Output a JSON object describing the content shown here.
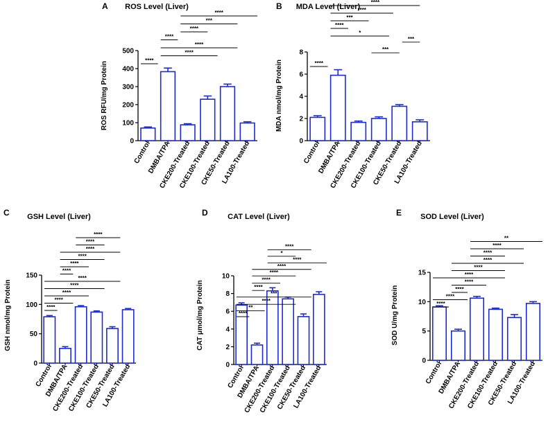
{
  "chart_data": [
    {
      "id": "A",
      "type": "bar",
      "title": "ROS Level (Liver)",
      "ylabel": "ROS RFU/mg Protein",
      "xlabel": "",
      "ylim": [
        0,
        500
      ],
      "yticks": [
        0,
        100,
        200,
        300,
        400,
        500
      ],
      "categories": [
        "Control",
        "DMBA/TPA",
        "CKE200-Treated",
        "CKE100-Treated",
        "CKE50-Treated",
        "LA100-Treated"
      ],
      "values": [
        70,
        383,
        88,
        230,
        300,
        98
      ],
      "errors": [
        6,
        20,
        6,
        18,
        14,
        7
      ],
      "bar_color": "#1a2bd6",
      "significance": [
        {
          "from": 0,
          "to": 1,
          "label": "****"
        },
        {
          "from": 1,
          "to": 4,
          "label": "****"
        },
        {
          "from": 1,
          "to": 5,
          "label": "****"
        },
        {
          "from": 1,
          "to": 2,
          "label": "****"
        },
        {
          "from": 2,
          "to": 4,
          "label": "****"
        },
        {
          "from": 2,
          "to": 5,
          "label": "***"
        },
        {
          "from": 2,
          "to": 6,
          "label": "****"
        }
      ]
    },
    {
      "id": "B",
      "type": "bar",
      "title": "MDA Level (Liver)",
      "ylabel": "MDA nmol/mg Protein",
      "xlabel": "",
      "ylim": [
        0,
        8
      ],
      "yticks": [
        0,
        2,
        4,
        6,
        8
      ],
      "categories": [
        "Control",
        "DMBA/TPA",
        "CKE200-Treated",
        "CKE100-Treated",
        "CKE50-Treated",
        "LA100-Treated"
      ],
      "values": [
        2.1,
        5.9,
        1.65,
        2.0,
        3.1,
        1.7
      ],
      "errors": [
        0.15,
        0.5,
        0.12,
        0.15,
        0.15,
        0.18
      ],
      "bar_color": "#1a2bd6",
      "significance": [
        {
          "from": 0,
          "to": 1,
          "label": "****"
        },
        {
          "from": 3,
          "to": 4,
          "label": "***"
        },
        {
          "from": 4,
          "to": 5,
          "label": "***"
        },
        {
          "from": 1,
          "to": 4,
          "label": "*"
        },
        {
          "from": 1,
          "to": 2,
          "label": "****"
        },
        {
          "from": 1,
          "to": 3,
          "label": "***"
        },
        {
          "from": 1,
          "to": 4,
          "label": "****"
        },
        {
          "from": 1,
          "to": 5,
          "label": "****"
        }
      ]
    },
    {
      "id": "C",
      "type": "bar",
      "title": "GSH Level (Liver)",
      "ylabel": "GSH nmol/mg Protein",
      "xlabel": "",
      "ylim": [
        0,
        150
      ],
      "yticks": [
        0,
        50,
        100,
        150
      ],
      "categories": [
        "Control",
        "DMBA/TPA",
        "CKE200-Treated",
        "CKE100-Treated",
        "CKE50-Treated",
        "LA100-Treated"
      ],
      "values": [
        79,
        25,
        96,
        87,
        59,
        91
      ],
      "errors": [
        2,
        3,
        2,
        2,
        3,
        2
      ],
      "bar_color": "#1a2bd6",
      "significance": [
        {
          "from": 0,
          "to": 1,
          "label": "****"
        },
        {
          "from": 0,
          "to": 2,
          "label": "****"
        },
        {
          "from": 0,
          "to": 3,
          "label": "****"
        },
        {
          "from": 0,
          "to": 4,
          "label": "****"
        },
        {
          "from": 0,
          "to": 5,
          "label": "****"
        },
        {
          "from": 1,
          "to": 2,
          "label": "****"
        },
        {
          "from": 1,
          "to": 3,
          "label": "****"
        },
        {
          "from": 1,
          "to": 4,
          "label": "****"
        },
        {
          "from": 1,
          "to": 5,
          "label": "****"
        },
        {
          "from": 2,
          "to": 4,
          "label": "****"
        },
        {
          "from": 2,
          "to": 5,
          "label": "****"
        }
      ]
    },
    {
      "id": "D",
      "type": "bar",
      "title": "CAT Level (Liver)",
      "ylabel": "CAT μmol/mg Protein",
      "xlabel": "",
      "ylim": [
        0,
        10
      ],
      "yticks": [
        0,
        2,
        4,
        6,
        8,
        10
      ],
      "categories": [
        "Control",
        "DMBA/TPA",
        "CKE200-Treated",
        "CKE100-Treated",
        "CKE50-Treated",
        "LA100-Treated"
      ],
      "values": [
        6.7,
        2.2,
        8.3,
        7.4,
        5.4,
        7.9
      ],
      "errors": [
        0.25,
        0.2,
        0.35,
        0.2,
        0.3,
        0.3
      ],
      "bar_color": "#1a2bd6",
      "significance": [
        {
          "from": 0,
          "to": 1,
          "label": "****"
        },
        {
          "from": 0,
          "to": 2,
          "label": "****"
        },
        {
          "from": 0,
          "to": 4,
          "label": "***"
        },
        {
          "from": 0,
          "to": 5,
          "label": "**"
        },
        {
          "from": 1,
          "to": 2,
          "label": "****"
        },
        {
          "from": 1,
          "to": 3,
          "label": "****"
        },
        {
          "from": 1,
          "to": 4,
          "label": "****"
        },
        {
          "from": 1,
          "to": 5,
          "label": "****"
        },
        {
          "from": 2,
          "to": 6,
          "label": "****"
        },
        {
          "from": 2,
          "to": 5,
          "label": "*"
        },
        {
          "from": 2,
          "to": 4,
          "label": "****"
        }
      ]
    },
    {
      "id": "E",
      "type": "bar",
      "title": "SOD Level (Liver)",
      "ylabel": "SOD U/mg Protein",
      "xlabel": "",
      "ylim": [
        0,
        15
      ],
      "yticks": [
        0,
        5,
        10,
        15
      ],
      "categories": [
        "Control",
        "DMBA/TPA",
        "CKE200-Treated",
        "CKE100-Treated",
        "CKE50-Treated",
        "LA100-Treated"
      ],
      "values": [
        9.1,
        5.0,
        10.6,
        8.7,
        7.3,
        9.7
      ],
      "errors": [
        0.2,
        0.3,
        0.3,
        0.2,
        0.5,
        0.3
      ],
      "bar_color": "#1a2bd6",
      "significance": [
        {
          "from": 0,
          "to": 1,
          "label": "****"
        },
        {
          "from": 0,
          "to": 2,
          "label": "****"
        },
        {
          "from": 0,
          "to": 4,
          "label": "****"
        },
        {
          "from": 1,
          "to": 2,
          "label": "****"
        },
        {
          "from": 1,
          "to": 3,
          "label": "****"
        },
        {
          "from": 1,
          "to": 4,
          "label": "****"
        },
        {
          "from": 1,
          "to": 5,
          "label": "****"
        },
        {
          "from": 2,
          "to": 4,
          "label": "****"
        },
        {
          "from": 2,
          "to": 5,
          "label": "****"
        },
        {
          "from": 2,
          "to": 6,
          "label": "**"
        }
      ]
    }
  ]
}
